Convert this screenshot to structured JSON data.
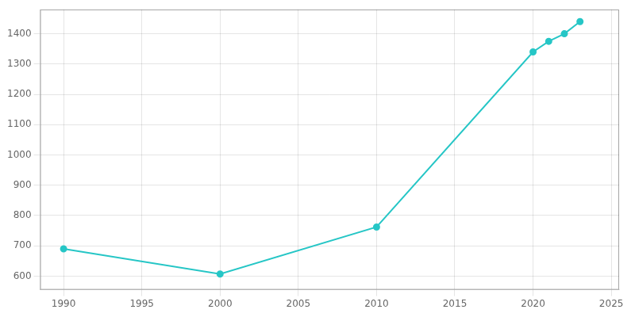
{
  "chart_data": {
    "type": "line",
    "x": [
      1990,
      2000,
      2010,
      2020,
      2021,
      2022,
      2023
    ],
    "values": [
      690,
      607,
      762,
      1340,
      1375,
      1400,
      1440
    ],
    "color": "#26C6C6",
    "marker": "circle",
    "line_style": "solid",
    "xlim": [
      1988.5,
      2025.5
    ],
    "ylim": [
      555,
      1480
    ],
    "xticks": [
      1990,
      1995,
      2000,
      2005,
      2010,
      2015,
      2020,
      2025
    ],
    "yticks": [
      600,
      700,
      800,
      900,
      1000,
      1100,
      1200,
      1300,
      1400
    ],
    "grid": true
  }
}
